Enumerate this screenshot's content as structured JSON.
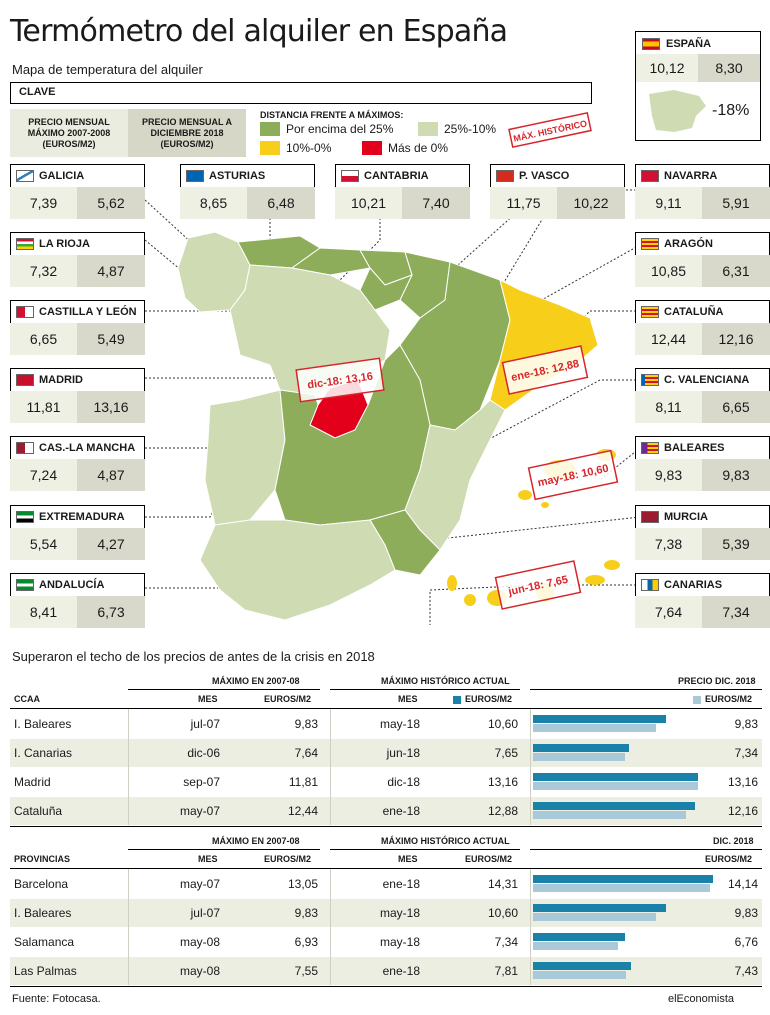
{
  "header": {
    "title": "Termómetro del alquiler en España",
    "subtitle": "Mapa de temperatura del alquiler"
  },
  "legend": {
    "clave": "CLAVE",
    "col_max": "PRECIO MENSUAL MÁXIMO 2007-2008 (EUROS/M2)",
    "col_dec": "PRECIO MENSUAL A DICIEMBRE 2018 (EUROS/M2)",
    "distance_title": "DISTANCIA FRENTE A MÁXIMOS:",
    "items": [
      {
        "label": "Por encima del 25%",
        "color": "#8dad5a"
      },
      {
        "label": "25%-10%",
        "color": "#cfdcb3"
      },
      {
        "label": "10%-0%",
        "color": "#f7cf1b"
      },
      {
        "label": "Más de 0%",
        "color": "#e2001a"
      }
    ],
    "stamp_record": "MÁX. HISTÓRICO"
  },
  "espana": {
    "name": "ESPAÑA",
    "max": "10,12",
    "dec": "8,30",
    "diff": "-18%"
  },
  "regions": [
    {
      "name": "GALICIA",
      "max": "7,39",
      "dec": "5,62",
      "flag": "galicia-flag"
    },
    {
      "name": "ASTURIAS",
      "max": "8,65",
      "dec": "6,48",
      "flag": "asturias-flag"
    },
    {
      "name": "CANTABRIA",
      "max": "10,21",
      "dec": "7,40",
      "flag": "cantabria-flag"
    },
    {
      "name": "P. VASCO",
      "max": "11,75",
      "dec": "10,22",
      "flag": "pais-vasco-flag"
    },
    {
      "name": "NAVARRA",
      "max": "9,11",
      "dec": "5,91",
      "flag": "navarra-flag"
    },
    {
      "name": "LA RIOJA",
      "max": "7,32",
      "dec": "4,87",
      "flag": "la-rioja-flag"
    },
    {
      "name": "ARAGÓN",
      "max": "10,85",
      "dec": "6,31",
      "flag": "aragon-flag"
    },
    {
      "name": "CASTILLA Y LEÓN",
      "max": "6,65",
      "dec": "5,49",
      "flag": "castilla-leon-flag"
    },
    {
      "name": "CATALUÑA",
      "max": "12,44",
      "dec": "12,16",
      "flag": "cataluna-flag"
    },
    {
      "name": "MADRID",
      "max": "11,81",
      "dec": "13,16",
      "flag": "madrid-flag"
    },
    {
      "name": "C. VALENCIANA",
      "max": "8,11",
      "dec": "6,65",
      "flag": "valenciana-flag"
    },
    {
      "name": "CAS.-LA MANCHA",
      "max": "7,24",
      "dec": "4,87",
      "flag": "castilla-la-mancha-flag"
    },
    {
      "name": "BALEARES",
      "max": "9,83",
      "dec": "9,83",
      "flag": "baleares-flag"
    },
    {
      "name": "EXTREMADURA",
      "max": "5,54",
      "dec": "4,27",
      "flag": "extremadura-flag"
    },
    {
      "name": "MURCIA",
      "max": "7,38",
      "dec": "5,39",
      "flag": "murcia-flag"
    },
    {
      "name": "ANDALUCÍA",
      "max": "8,41",
      "dec": "6,73",
      "flag": "andalucia-flag"
    },
    {
      "name": "CANARIAS",
      "max": "7,64",
      "dec": "7,34",
      "flag": "canarias-flag"
    }
  ],
  "map_stamps": [
    "dic-18: 13,16",
    "ene-18: 12,88",
    "may-18: 10,60",
    "jun-18: 7,65"
  ],
  "section_title": "Superaron el techo de los precios de antes de la crisis en 2018",
  "table_ccaa": {
    "group_max": "MÁXIMO EN 2007-08",
    "group_hist": "MÁXIMO HISTÓRICO ACTUAL",
    "group_dec": "PRECIO DIC. 2018",
    "col_name": "CCAA",
    "col_mes": "MES",
    "col_euros": "EUROS/M2",
    "rows": [
      {
        "name": "I. Baleares",
        "max_mes": "jul-07",
        "max_eur": "9,83",
        "hist_mes": "may-18",
        "hist_eur": "10,60",
        "dec_eur": "9,83"
      },
      {
        "name": "I. Canarias",
        "max_mes": "dic-06",
        "max_eur": "7,64",
        "hist_mes": "jun-18",
        "hist_eur": "7,65",
        "dec_eur": "7,34"
      },
      {
        "name": "Madrid",
        "max_mes": "sep-07",
        "max_eur": "11,81",
        "hist_mes": "dic-18",
        "hist_eur": "13,16",
        "dec_eur": "13,16"
      },
      {
        "name": "Cataluña",
        "max_mes": "may-07",
        "max_eur": "12,44",
        "hist_mes": "ene-18",
        "hist_eur": "12,88",
        "dec_eur": "12,16"
      }
    ]
  },
  "table_prov": {
    "group_max": "MÁXIMO EN 2007-08",
    "group_hist": "MÁXIMO HISTÓRICO ACTUAL",
    "group_dec": "DIC. 2018",
    "col_name": "PROVINCIAS",
    "col_mes": "MES",
    "col_euros": "EUROS/M2",
    "rows": [
      {
        "name": "Barcelona",
        "max_mes": "may-07",
        "max_eur": "13,05",
        "hist_mes": "ene-18",
        "hist_eur": "14,31",
        "dec_eur": "14,14"
      },
      {
        "name": "I. Baleares",
        "max_mes": "jul-07",
        "max_eur": "9,83",
        "hist_mes": "may-18",
        "hist_eur": "10,60",
        "dec_eur": "9,83"
      },
      {
        "name": "Salamanca",
        "max_mes": "may-08",
        "max_eur": "6,93",
        "hist_mes": "may-18",
        "hist_eur": "7,34",
        "dec_eur": "6,76"
      },
      {
        "name": "Las Palmas",
        "max_mes": "may-08",
        "max_eur": "7,55",
        "hist_mes": "ene-18",
        "hist_eur": "7,81",
        "dec_eur": "7,43"
      }
    ]
  },
  "chart_data": [
    {
      "type": "bar",
      "categories": [
        "I. Baleares",
        "I. Canarias",
        "Madrid",
        "Cataluña"
      ],
      "series": [
        {
          "name": "",
          "values": [
            10.6,
            7.65,
            13.16,
            12.88
          ]
        },
        {
          "name": "EUROS/M2",
          "values": [
            9.83,
            7.34,
            13.16,
            12.16
          ]
        }
      ],
      "title": "PRECIO DIC. 2018",
      "xlim": [
        0,
        14.5
      ],
      "colors": [
        "#1a82a8",
        "#a9c9d8"
      ]
    },
    {
      "type": "bar",
      "categories": [
        "Barcelona",
        "I. Baleares",
        "Salamanca",
        "Las Palmas"
      ],
      "series": [
        {
          "name": "",
          "values": [
            14.31,
            10.6,
            7.34,
            7.81
          ]
        },
        {
          "name": "",
          "values": [
            14.14,
            9.83,
            6.76,
            7.43
          ]
        }
      ],
      "title": "DIC. 2018",
      "xlim": [
        0,
        14.5
      ],
      "colors": [
        "#1a82a8",
        "#a9c9d8"
      ]
    }
  ],
  "footer": {
    "source": "Fuente: Fotocasa.",
    "brand": "elEconomista"
  }
}
